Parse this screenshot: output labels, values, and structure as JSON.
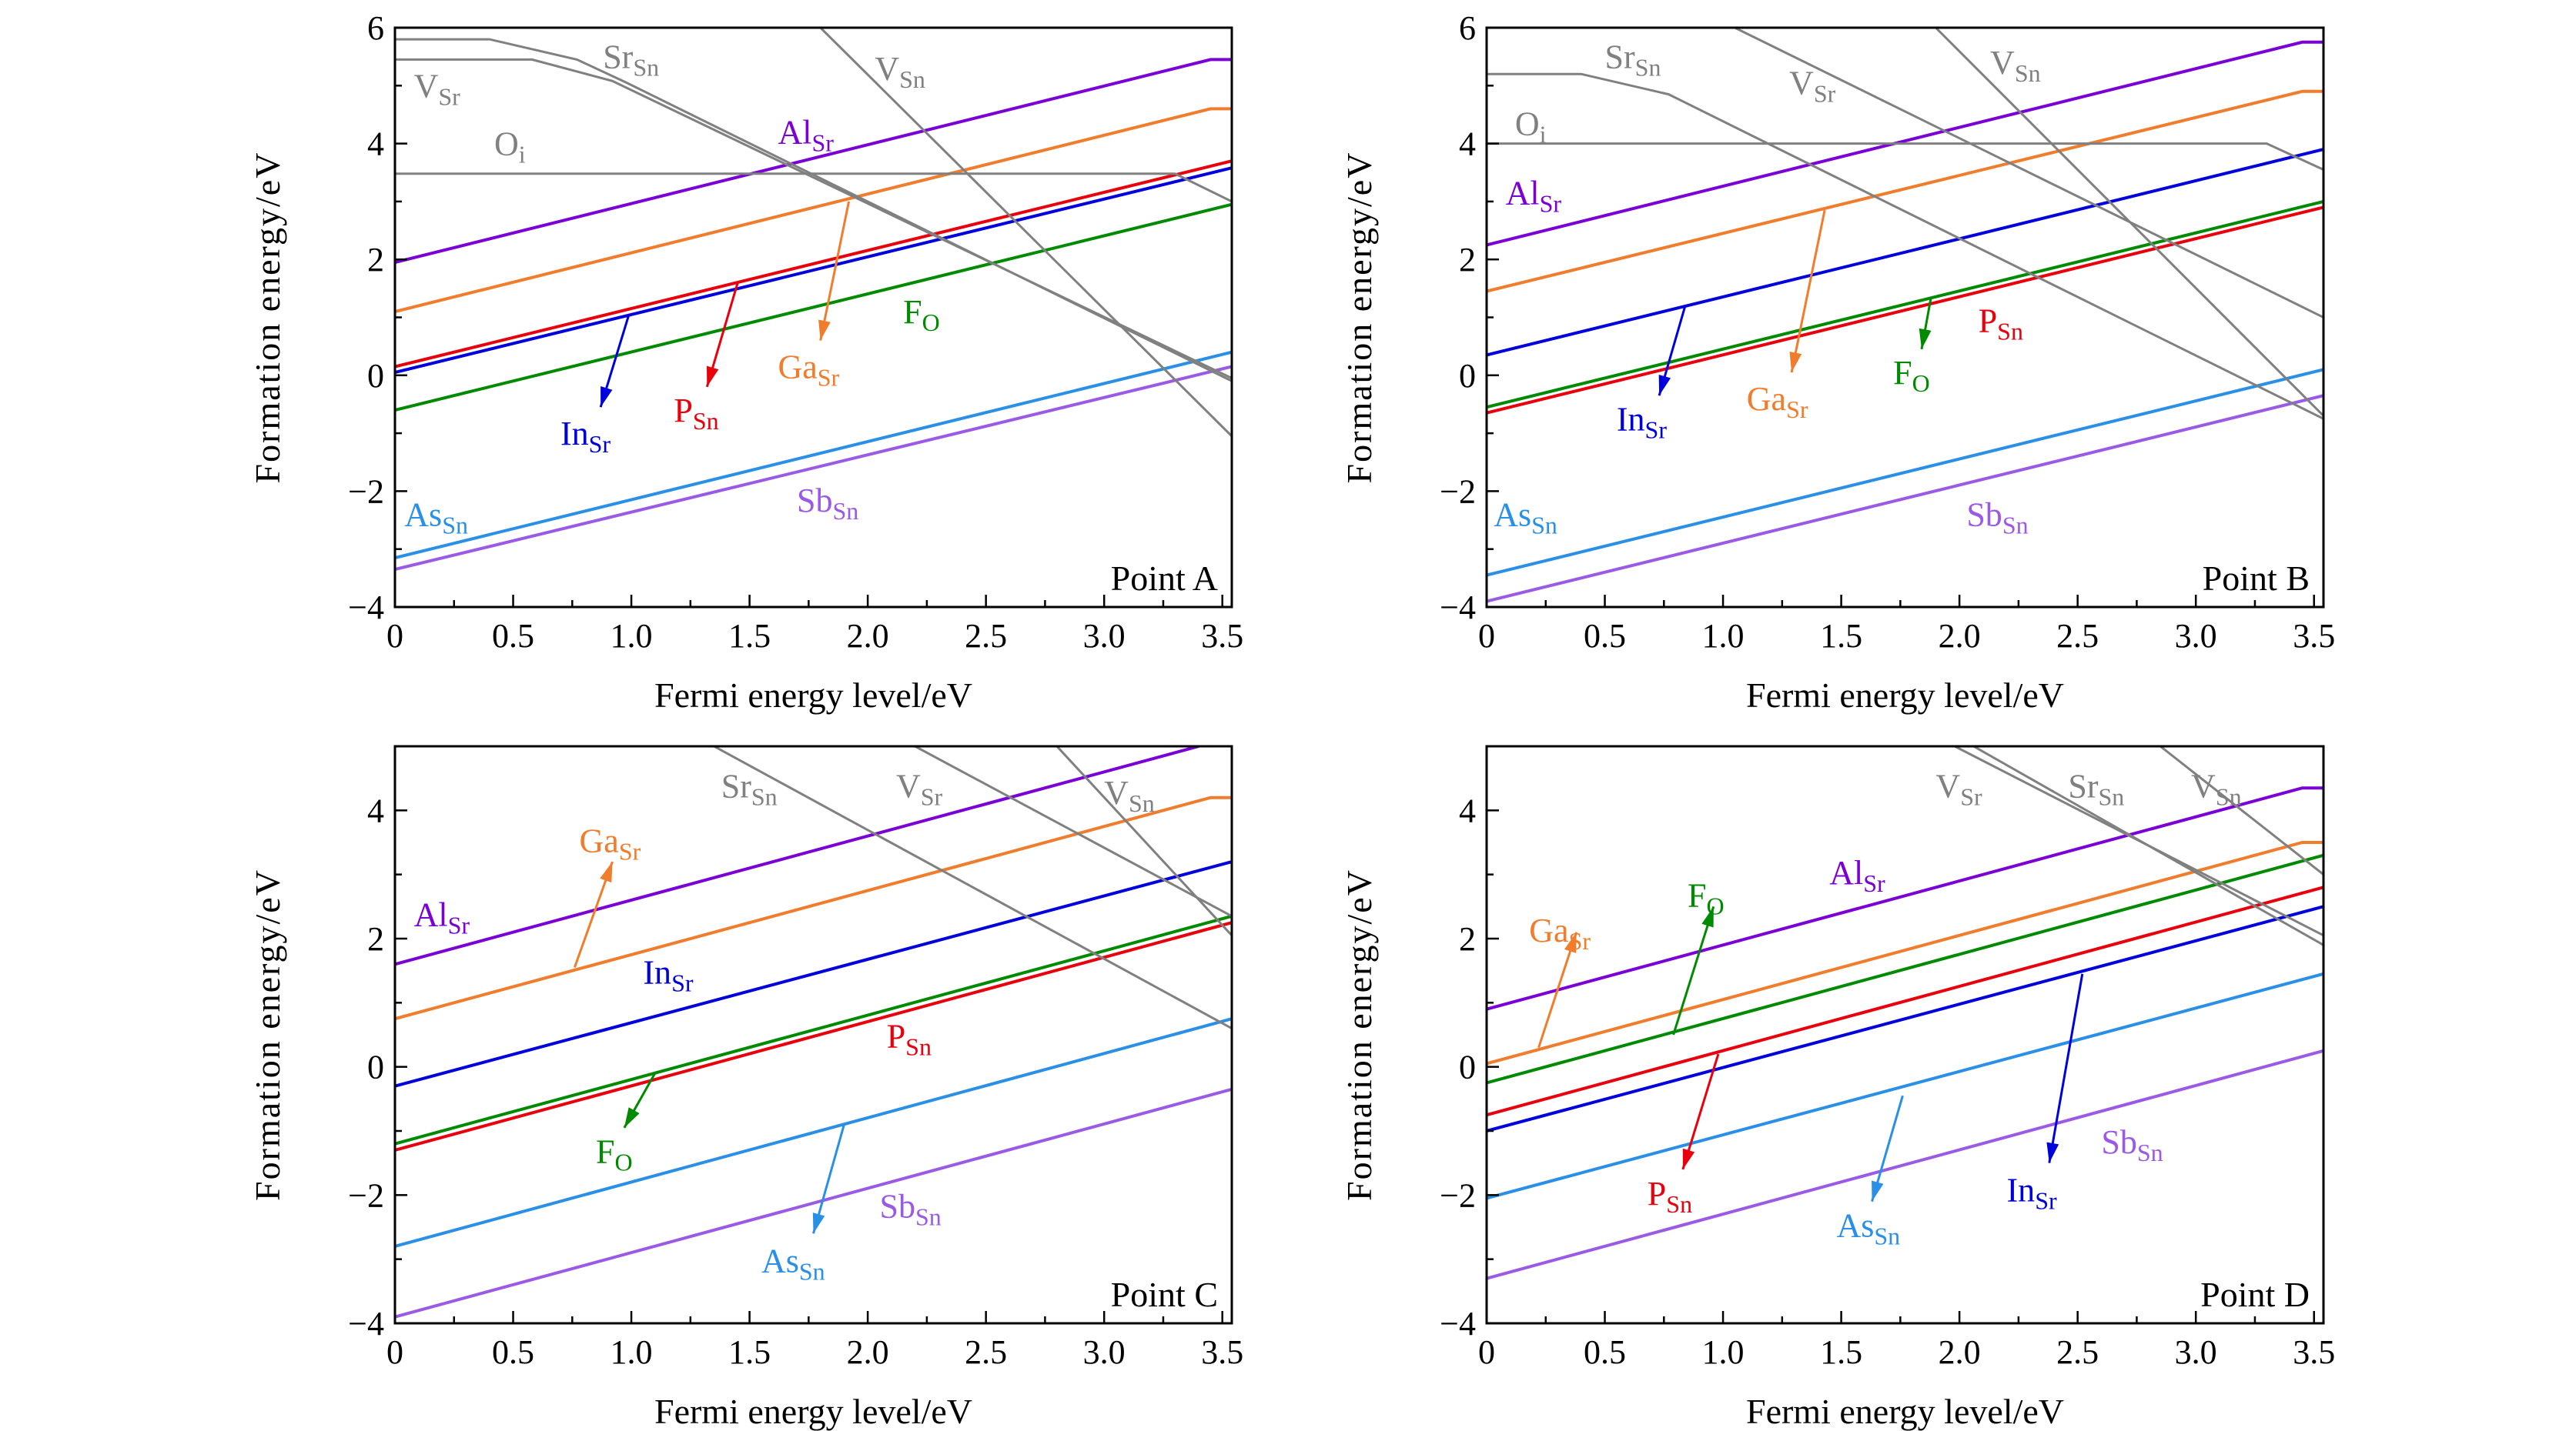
{
  "chart_data": [
    {
      "type": "line",
      "annotation": "Point A",
      "xlabel": "Fermi energy level/eV",
      "ylabel": "Formation energy/eV",
      "xlim": [
        0,
        3.54
      ],
      "ylim": [
        -4,
        6
      ],
      "xticks": [
        "0",
        "0.5",
        "1.0",
        "1.5",
        "2.0",
        "2.5",
        "3.0",
        "3.5"
      ],
      "yticks": [
        "−4",
        "−2",
        "0",
        "2",
        "4",
        "6"
      ],
      "series": [
        {
          "name": "Al",
          "sub": "Sr",
          "color": "#7a00d6",
          "points": [
            [
              0,
              1.95
            ],
            [
              3.45,
              5.45
            ],
            [
              3.54,
              5.45
            ]
          ]
        },
        {
          "name": "Ga",
          "sub": "Sr",
          "color": "#f07c2c",
          "points": [
            [
              0,
              1.1
            ],
            [
              3.45,
              4.6
            ],
            [
              3.54,
              4.6
            ]
          ]
        },
        {
          "name": "P",
          "sub": "Sn",
          "color": "#e8000c",
          "points": [
            [
              0,
              0.15
            ],
            [
              3.54,
              3.7
            ]
          ]
        },
        {
          "name": "In",
          "sub": "Sr",
          "color": "#0000dc",
          "points": [
            [
              0,
              0.05
            ],
            [
              3.54,
              3.58
            ]
          ]
        },
        {
          "name": "F",
          "sub": "O",
          "color": "#008a00",
          "points": [
            [
              0,
              -0.6
            ],
            [
              3.54,
              2.95
            ]
          ]
        },
        {
          "name": "As",
          "sub": "Sn",
          "color": "#2a8fe6",
          "points": [
            [
              0,
              -3.15
            ],
            [
              3.54,
              0.4
            ]
          ]
        },
        {
          "name": "Sb",
          "sub": "Sn",
          "color": "#9a5ae6",
          "points": [
            [
              0,
              -3.35
            ],
            [
              3.54,
              0.15
            ]
          ]
        },
        {
          "name": "Sr",
          "sub": "Sn",
          "color": "#808080",
          "points": [
            [
              0,
              5.8
            ],
            [
              0.4,
              5.8
            ],
            [
              0.77,
              5.45
            ],
            [
              0.98,
              5.05
            ],
            [
              3.54,
              -0.1
            ]
          ]
        },
        {
          "name": "V",
          "sub": "Sr",
          "color": "#808080",
          "points": [
            [
              0,
              5.45
            ],
            [
              0.58,
              5.45
            ],
            [
              0.92,
              5.08
            ],
            [
              3.54,
              -0.05
            ]
          ]
        },
        {
          "name": "O",
          "sub": "i",
          "color": "#808080",
          "points": [
            [
              0,
              3.48
            ],
            [
              3.3,
              3.48
            ],
            [
              3.54,
              3.0
            ]
          ]
        },
        {
          "name": "V",
          "sub": "Sn",
          "color": "#808080",
          "points": [
            [
              1.8,
              6
            ],
            [
              3.54,
              -1.05
            ]
          ]
        }
      ]
    },
    {
      "type": "line",
      "annotation": "Point B",
      "xlabel": "Fermi energy level/eV",
      "ylabel": "Formation energy/eV",
      "xlim": [
        0,
        3.54
      ],
      "ylim": [
        -4,
        6
      ],
      "xticks": [
        "0",
        "0.5",
        "1.0",
        "1.5",
        "2.0",
        "2.5",
        "3.0",
        "3.5"
      ],
      "yticks": [
        "−4",
        "−2",
        "0",
        "2",
        "4",
        "6"
      ],
      "series": [
        {
          "name": "Al",
          "sub": "Sr",
          "color": "#7a00d6",
          "points": [
            [
              0,
              2.25
            ],
            [
              3.45,
              5.75
            ],
            [
              3.54,
              5.75
            ]
          ]
        },
        {
          "name": "Ga",
          "sub": "Sr",
          "color": "#f07c2c",
          "points": [
            [
              0,
              1.45
            ],
            [
              3.45,
              4.9
            ],
            [
              3.54,
              4.9
            ]
          ]
        },
        {
          "name": "In",
          "sub": "Sr",
          "color": "#0000dc",
          "points": [
            [
              0,
              0.35
            ],
            [
              3.54,
              3.9
            ]
          ]
        },
        {
          "name": "F",
          "sub": "O",
          "color": "#008a00",
          "points": [
            [
              0,
              -0.55
            ],
            [
              3.54,
              3.0
            ]
          ]
        },
        {
          "name": "P",
          "sub": "Sn",
          "color": "#e8000c",
          "points": [
            [
              0,
              -0.65
            ],
            [
              3.54,
              2.9
            ]
          ]
        },
        {
          "name": "As",
          "sub": "Sn",
          "color": "#2a8fe6",
          "points": [
            [
              0,
              -3.45
            ],
            [
              3.54,
              0.1
            ]
          ]
        },
        {
          "name": "Sb",
          "sub": "Sn",
          "color": "#9a5ae6",
          "points": [
            [
              0,
              -3.9
            ],
            [
              3.54,
              -0.35
            ]
          ]
        },
        {
          "name": "Sr",
          "sub": "Sn",
          "color": "#808080",
          "points": [
            [
              0,
              5.2
            ],
            [
              0.4,
              5.2
            ],
            [
              0.77,
              4.85
            ],
            [
              3.54,
              -0.75
            ]
          ]
        },
        {
          "name": "V",
          "sub": "Sr",
          "color": "#808080",
          "points": [
            [
              1.05,
              6
            ],
            [
              3.54,
              1.0
            ]
          ]
        },
        {
          "name": "O",
          "sub": "i",
          "color": "#808080",
          "points": [
            [
              0,
              4.0
            ],
            [
              3.3,
              4.0
            ],
            [
              3.54,
              3.55
            ]
          ]
        },
        {
          "name": "V",
          "sub": "Sn",
          "color": "#808080",
          "points": [
            [
              1.9,
              6
            ],
            [
              3.54,
              -0.7
            ]
          ]
        }
      ]
    },
    {
      "type": "line",
      "annotation": "Point C",
      "xlabel": "Fermi energy level/eV",
      "ylabel": "Formation energy/eV",
      "xlim": [
        0,
        3.54
      ],
      "ylim": [
        -4,
        5
      ],
      "xticks": [
        "0",
        "0.5",
        "1.0",
        "1.5",
        "2.0",
        "2.5",
        "3.0",
        "3.5"
      ],
      "yticks": [
        "−4",
        "−2",
        "0",
        "2",
        "4"
      ],
      "series": [
        {
          "name": "Al",
          "sub": "Sr",
          "color": "#7a00d6",
          "points": [
            [
              0,
              1.6
            ],
            [
              3.4,
              5.0
            ]
          ]
        },
        {
          "name": "Ga",
          "sub": "Sr",
          "color": "#f07c2c",
          "points": [
            [
              0,
              0.75
            ],
            [
              3.45,
              4.2
            ],
            [
              3.54,
              4.2
            ]
          ]
        },
        {
          "name": "In",
          "sub": "Sr",
          "color": "#0000dc",
          "points": [
            [
              0,
              -0.3
            ],
            [
              3.54,
              3.2
            ]
          ]
        },
        {
          "name": "F",
          "sub": "O",
          "color": "#008a00",
          "points": [
            [
              0,
              -1.2
            ],
            [
              3.54,
              2.35
            ]
          ]
        },
        {
          "name": "P",
          "sub": "Sn",
          "color": "#e8000c",
          "points": [
            [
              0,
              -1.3
            ],
            [
              3.54,
              2.25
            ]
          ]
        },
        {
          "name": "As",
          "sub": "Sn",
          "color": "#2a8fe6",
          "points": [
            [
              0,
              -2.8
            ],
            [
              3.54,
              0.75
            ]
          ]
        },
        {
          "name": "Sb",
          "sub": "Sn",
          "color": "#9a5ae6",
          "points": [
            [
              0,
              -3.9
            ],
            [
              3.54,
              -0.35
            ]
          ]
        },
        {
          "name": "Sr",
          "sub": "Sn",
          "color": "#808080",
          "points": [
            [
              1.35,
              5
            ],
            [
              3.54,
              0.6
            ]
          ]
        },
        {
          "name": "V",
          "sub": "Sr",
          "color": "#808080",
          "points": [
            [
              2.2,
              5
            ],
            [
              3.54,
              2.35
            ]
          ]
        },
        {
          "name": "V",
          "sub": "Sn",
          "color": "#808080",
          "points": [
            [
              2.8,
              5
            ],
            [
              3.54,
              2.05
            ]
          ]
        }
      ]
    },
    {
      "type": "line",
      "annotation": "Point D",
      "xlabel": "Fermi energy level/eV",
      "ylabel": "Formation energy/eV",
      "xlim": [
        0,
        3.54
      ],
      "ylim": [
        -4,
        5
      ],
      "xticks": [
        "0",
        "0.5",
        "1.0",
        "1.5",
        "2.0",
        "2.5",
        "3.0",
        "3.5"
      ],
      "yticks": [
        "−4",
        "−2",
        "0",
        "2",
        "4"
      ],
      "series": [
        {
          "name": "Al",
          "sub": "Sr",
          "color": "#7a00d6",
          "points": [
            [
              0,
              0.9
            ],
            [
              3.45,
              4.35
            ],
            [
              3.54,
              4.35
            ]
          ]
        },
        {
          "name": "Ga",
          "sub": "Sr",
          "color": "#f07c2c",
          "points": [
            [
              0,
              0.05
            ],
            [
              3.45,
              3.5
            ],
            [
              3.54,
              3.5
            ]
          ]
        },
        {
          "name": "F",
          "sub": "O",
          "color": "#008a00",
          "points": [
            [
              0,
              -0.25
            ],
            [
              3.54,
              3.3
            ]
          ]
        },
        {
          "name": "P",
          "sub": "Sn",
          "color": "#e8000c",
          "points": [
            [
              0,
              -0.75
            ],
            [
              3.54,
              2.8
            ]
          ]
        },
        {
          "name": "In",
          "sub": "Sr",
          "color": "#0000dc",
          "points": [
            [
              0,
              -1.0
            ],
            [
              3.54,
              2.5
            ]
          ]
        },
        {
          "name": "As",
          "sub": "Sn",
          "color": "#2a8fe6",
          "points": [
            [
              0,
              -2.05
            ],
            [
              3.54,
              1.45
            ]
          ]
        },
        {
          "name": "Sb",
          "sub": "Sn",
          "color": "#9a5ae6",
          "points": [
            [
              0,
              -3.3
            ],
            [
              3.54,
              0.25
            ]
          ]
        },
        {
          "name": "V",
          "sub": "Sr",
          "color": "#808080",
          "points": [
            [
              1.98,
              5
            ],
            [
              3.54,
              2.05
            ]
          ]
        },
        {
          "name": "Sr",
          "sub": "Sn",
          "color": "#808080",
          "points": [
            [
              2.06,
              5
            ],
            [
              3.54,
              1.9
            ]
          ]
        },
        {
          "name": "V",
          "sub": "Sn",
          "color": "#808080",
          "points": [
            [
              2.85,
              5
            ],
            [
              3.54,
              3.0
            ]
          ]
        }
      ]
    }
  ]
}
